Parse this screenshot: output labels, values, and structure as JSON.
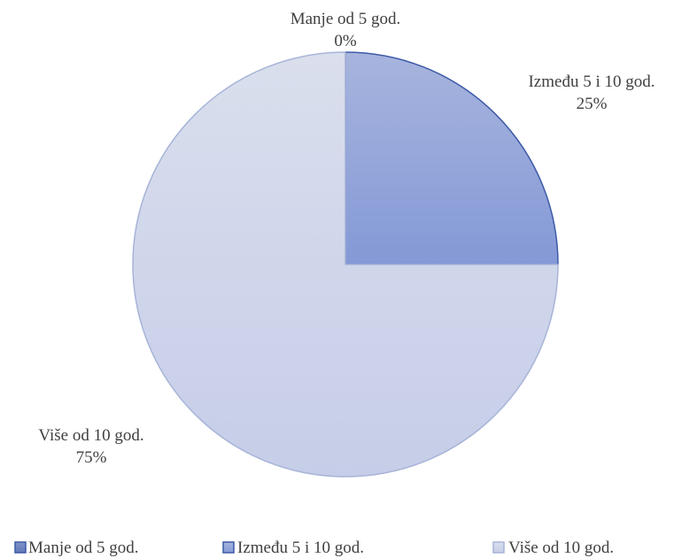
{
  "chart_data": {
    "type": "pie",
    "title": "",
    "categories": [
      "Manje od 5 god.",
      "Između 5 i 10 god.",
      "Više od 10 god."
    ],
    "values": [
      0,
      25,
      75
    ],
    "value_labels": [
      "0%",
      "25%",
      "75%"
    ],
    "unit": "%",
    "start_angle_deg": 0,
    "direction": "clockwise",
    "legend": {
      "position": "bottom",
      "entries": [
        "Manje od 5 god.",
        "Između 5 i 10 god.",
        "Više od 10 god."
      ]
    },
    "colors": {
      "series": [
        "#5f78b8",
        "#8a9fd8",
        "#c6cde8"
      ],
      "edges": [
        "#3d5aa8",
        "#3d5aa8",
        "#a7b4d8"
      ]
    }
  }
}
